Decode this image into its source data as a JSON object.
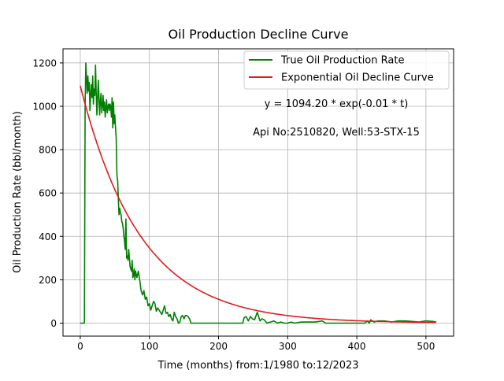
{
  "chart_data": {
    "type": "line",
    "title": "Oil Production Decline Curve",
    "xlabel": "Time (months) from:1/1980 to:12/2023",
    "ylabel": "Oil Production Rate (bbl/month)",
    "xlim": [
      -25,
      540
    ],
    "ylim": [
      -60,
      1265
    ],
    "xticks": [
      0,
      100,
      200,
      300,
      400,
      500
    ],
    "yticks": [
      0,
      200,
      400,
      600,
      800,
      1000,
      1200
    ],
    "grid": true,
    "legend_position": "top-right",
    "annotations": [
      "y = 1094.20 * exp(-0.01 * t)",
      "Api No:2510820, Well:53-STX-15"
    ],
    "series": [
      {
        "name": "True Oil Production Rate",
        "color": "#008000",
        "points": [
          [
            0,
            0
          ],
          [
            6,
            0
          ],
          [
            7,
            1000
          ],
          [
            8,
            1200
          ],
          [
            9,
            1130
          ],
          [
            10,
            1060
          ],
          [
            11,
            1140
          ],
          [
            12,
            1070
          ],
          [
            13,
            1110
          ],
          [
            14,
            980
          ],
          [
            15,
            1050
          ],
          [
            16,
            1100
          ],
          [
            17,
            1040
          ],
          [
            18,
            1140
          ],
          [
            19,
            1010
          ],
          [
            20,
            1080
          ],
          [
            21,
            1050
          ],
          [
            22,
            1190
          ],
          [
            23,
            1070
          ],
          [
            24,
            960
          ],
          [
            25,
            1030
          ],
          [
            26,
            1120
          ],
          [
            27,
            1050
          ],
          [
            28,
            960
          ],
          [
            29,
            1020
          ],
          [
            30,
            1060
          ],
          [
            31,
            970
          ],
          [
            32,
            1000
          ],
          [
            33,
            1050
          ],
          [
            34,
            980
          ],
          [
            35,
            1020
          ],
          [
            36,
            950
          ],
          [
            37,
            990
          ],
          [
            38,
            1030
          ],
          [
            39,
            970
          ],
          [
            40,
            1000
          ],
          [
            41,
            1010
          ],
          [
            42,
            980
          ],
          [
            43,
            1010
          ],
          [
            44,
            1000
          ],
          [
            45,
            950
          ],
          [
            46,
            1040
          ],
          [
            47,
            900
          ],
          [
            48,
            1020
          ],
          [
            49,
            920
          ],
          [
            50,
            960
          ],
          [
            51,
            900
          ],
          [
            52,
            850
          ],
          [
            53,
            680
          ],
          [
            54,
            660
          ],
          [
            55,
            580
          ],
          [
            56,
            500
          ],
          [
            57,
            530
          ],
          [
            58,
            510
          ],
          [
            59,
            500
          ],
          [
            60,
            470
          ],
          [
            61,
            460
          ],
          [
            62,
            440
          ],
          [
            63,
            400
          ],
          [
            64,
            380
          ],
          [
            65,
            340
          ],
          [
            66,
            480
          ],
          [
            67,
            300
          ],
          [
            68,
            310
          ],
          [
            69,
            290
          ],
          [
            70,
            340
          ],
          [
            72,
            260
          ],
          [
            74,
            240
          ],
          [
            75,
            290
          ],
          [
            76,
            210
          ],
          [
            77,
            220
          ],
          [
            78,
            250
          ],
          [
            79,
            200
          ],
          [
            80,
            240
          ],
          [
            82,
            210
          ],
          [
            84,
            240
          ],
          [
            86,
            200
          ],
          [
            88,
            150
          ],
          [
            90,
            130
          ],
          [
            92,
            150
          ],
          [
            94,
            110
          ],
          [
            96,
            120
          ],
          [
            98,
            80
          ],
          [
            100,
            90
          ],
          [
            102,
            60
          ],
          [
            104,
            80
          ],
          [
            106,
            100
          ],
          [
            108,
            90
          ],
          [
            110,
            55
          ],
          [
            112,
            70
          ],
          [
            114,
            60
          ],
          [
            116,
            50
          ],
          [
            118,
            40
          ],
          [
            120,
            60
          ],
          [
            122,
            80
          ],
          [
            124,
            45
          ],
          [
            126,
            50
          ],
          [
            128,
            30
          ],
          [
            130,
            40
          ],
          [
            132,
            20
          ],
          [
            134,
            10
          ],
          [
            136,
            50
          ],
          [
            138,
            30
          ],
          [
            140,
            20
          ],
          [
            142,
            0
          ],
          [
            144,
            5
          ],
          [
            146,
            30
          ],
          [
            148,
            35
          ],
          [
            150,
            20
          ],
          [
            152,
            35
          ],
          [
            154,
            35
          ],
          [
            156,
            30
          ],
          [
            158,
            20
          ],
          [
            160,
            0
          ],
          [
            170,
            0
          ],
          [
            180,
            0
          ],
          [
            190,
            0
          ],
          [
            200,
            0
          ],
          [
            210,
            0
          ],
          [
            220,
            0
          ],
          [
            230,
            0
          ],
          [
            235,
            0
          ],
          [
            237,
            25
          ],
          [
            240,
            30
          ],
          [
            243,
            10
          ],
          [
            246,
            30
          ],
          [
            249,
            20
          ],
          [
            252,
            15
          ],
          [
            256,
            50
          ],
          [
            258,
            30
          ],
          [
            260,
            10
          ],
          [
            263,
            20
          ],
          [
            266,
            15
          ],
          [
            270,
            0
          ],
          [
            275,
            5
          ],
          [
            280,
            10
          ],
          [
            285,
            0
          ],
          [
            290,
            5
          ],
          [
            295,
            0
          ],
          [
            300,
            0
          ],
          [
            305,
            5
          ],
          [
            310,
            0
          ],
          [
            320,
            5
          ],
          [
            330,
            5
          ],
          [
            340,
            5
          ],
          [
            350,
            10
          ],
          [
            355,
            0
          ],
          [
            360,
            0
          ],
          [
            380,
            0
          ],
          [
            400,
            0
          ],
          [
            412,
            0
          ],
          [
            415,
            10
          ],
          [
            418,
            0
          ],
          [
            420,
            15
          ],
          [
            425,
            5
          ],
          [
            430,
            10
          ],
          [
            440,
            10
          ],
          [
            450,
            5
          ],
          [
            460,
            10
          ],
          [
            470,
            10
          ],
          [
            480,
            8
          ],
          [
            490,
            5
          ],
          [
            500,
            10
          ],
          [
            510,
            8
          ],
          [
            515,
            5
          ]
        ]
      },
      {
        "name": "Exponential Oil Decline Curve",
        "color": "#e31a1c",
        "function": "exponential",
        "a": 1094.2,
        "b": -0.0115,
        "x_range": [
          0,
          515
        ]
      }
    ]
  }
}
